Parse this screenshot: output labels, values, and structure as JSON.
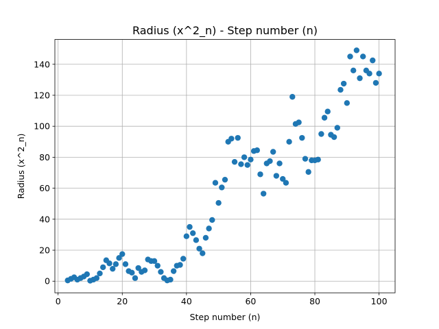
{
  "chart_data": {
    "type": "scatter",
    "title": "Radius (x^2_n) - Step number (n)",
    "xlabel": "Step number (n)",
    "ylabel": "Radius (x^2_n)",
    "xlim": [
      -1,
      105
    ],
    "ylim": [
      -7.5,
      156
    ],
    "xticks": [
      0,
      20,
      40,
      60,
      80,
      100
    ],
    "yticks": [
      0,
      20,
      40,
      60,
      80,
      100,
      120,
      140
    ],
    "grid": true,
    "marker_color": "#1f77b4",
    "series": [
      {
        "x": [
          3,
          4,
          5,
          6,
          7,
          8,
          9,
          10,
          11,
          12,
          13,
          14,
          15,
          16,
          17,
          18,
          19,
          20,
          21,
          22,
          23,
          24,
          25,
          26,
          27,
          28,
          29,
          30,
          31,
          32,
          33,
          34,
          35,
          36,
          37,
          38,
          39,
          40,
          41,
          42,
          43,
          44,
          45,
          46,
          47,
          48,
          49,
          50,
          51,
          52,
          53,
          54,
          55,
          56,
          57,
          58,
          59,
          60,
          61,
          62,
          63,
          64,
          65,
          66,
          67,
          68,
          69,
          70,
          71,
          72,
          73,
          74,
          75,
          76,
          77,
          78,
          79,
          80,
          81,
          82,
          83,
          84,
          85,
          86,
          87,
          88,
          89,
          90,
          91,
          92,
          93,
          94,
          95,
          96,
          97,
          98,
          99,
          100
        ],
        "y": [
          0.5,
          1.5,
          2.5,
          1,
          2,
          3,
          4.5,
          0.3,
          1,
          2,
          5,
          9,
          13.5,
          11.5,
          8,
          11,
          15,
          17.5,
          11,
          6.5,
          5.5,
          2,
          8.5,
          6,
          7,
          14,
          13,
          13,
          10,
          6,
          2,
          0.5,
          1,
          6.5,
          10,
          10.5,
          14.5,
          29,
          35,
          31,
          26.5,
          21,
          18,
          28,
          34,
          39.5,
          63.5,
          50.5,
          60.5,
          65.5,
          90,
          92,
          77,
          92.5,
          75.5,
          80,
          75,
          78.5,
          84,
          84.5,
          69,
          56.5,
          76,
          77.5,
          83.5,
          68,
          76,
          66,
          63.5,
          90,
          119,
          101.5,
          102.5,
          92.5,
          79,
          70.5,
          78,
          78,
          78.5,
          95,
          105.5,
          109.5,
          94.5,
          93,
          99,
          123.5,
          127.5,
          115,
          145,
          136,
          149,
          131,
          145,
          136,
          134,
          142.5,
          128,
          134
        ]
      }
    ]
  }
}
